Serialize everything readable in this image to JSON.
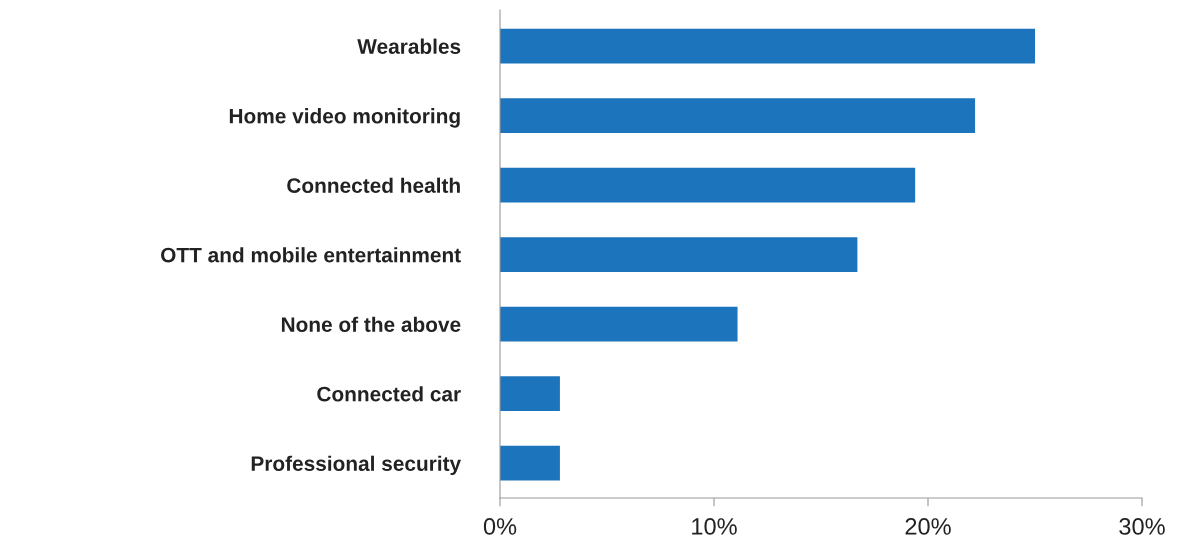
{
  "chart_data": {
    "type": "bar",
    "orientation": "horizontal",
    "categories": [
      "Wearables",
      "Home video monitoring",
      "Connected health",
      "OTT and mobile entertainment",
      "None of the above",
      "Connected car",
      "Professional security"
    ],
    "values": [
      25.0,
      22.2,
      19.4,
      16.7,
      11.1,
      2.8,
      2.8
    ],
    "color": "#1c75bc",
    "xlim": [
      0,
      30
    ],
    "xticks": [
      {
        "value": 0,
        "label": "0%"
      },
      {
        "value": 10,
        "label": "10%"
      },
      {
        "value": 20,
        "label": "20%"
      },
      {
        "value": 30,
        "label": "30%"
      }
    ],
    "grid": false,
    "legend": false
  }
}
